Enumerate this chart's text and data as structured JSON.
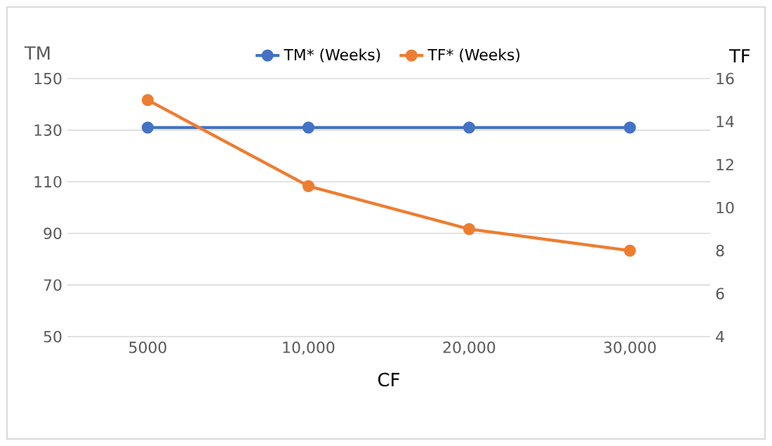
{
  "chart_data": {
    "type": "line",
    "xlabel": "CF",
    "ylabel": "TM",
    "y2label": "TF",
    "categories": [
      "5000",
      "10,000",
      "20,000",
      "30,000"
    ],
    "series": [
      {
        "name": "TM* (Weeks)",
        "color": "#4472c4",
        "values": [
          131,
          131,
          131,
          131
        ]
      },
      {
        "name": "TF* (Weeks)",
        "color": "#ed7d31",
        "axis": "y2",
        "values": [
          15,
          11,
          9,
          8
        ]
      }
    ],
    "ylim": [
      50,
      150
    ],
    "yticks": [
      50,
      70,
      90,
      110,
      130,
      150
    ],
    "y2lim": [
      4,
      16
    ],
    "y2ticks": [
      4,
      6,
      8,
      10,
      12,
      14,
      16
    ],
    "grid": "y",
    "legend": "top",
    "marker": "circle",
    "line_style": "solid"
  }
}
